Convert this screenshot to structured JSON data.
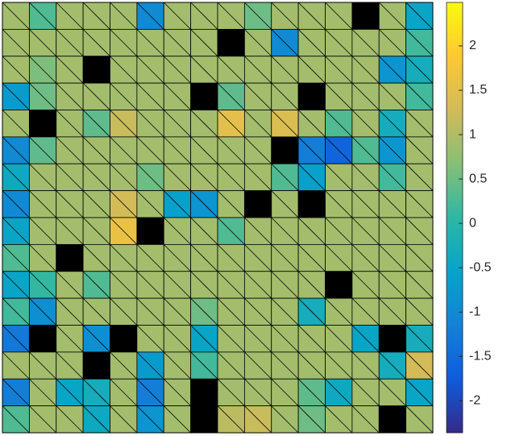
{
  "chart_data": {
    "type": "trimesh",
    "rows": 16,
    "cols": 16,
    "values": [
      [
        0.9,
        0.3,
        0.9,
        0.9,
        0.9,
        -1,
        0.9,
        0.9,
        0.9,
        0.5,
        0.9,
        0.9,
        0.9,
        null,
        0.9,
        -0.5
      ],
      [
        0.9,
        0.9,
        0.9,
        0.9,
        0.9,
        0.9,
        0.9,
        0.9,
        null,
        0.9,
        -1,
        0.9,
        0.9,
        0.9,
        0.9,
        0.2
      ],
      [
        0.9,
        0.6,
        0.9,
        null,
        0.9,
        0.9,
        0.9,
        0.9,
        0.9,
        0.9,
        0.9,
        0.9,
        0.9,
        0.9,
        -0.8,
        -0.3
      ],
      [
        -0.7,
        0.5,
        0.9,
        0.9,
        0.9,
        0.9,
        0.9,
        null,
        0.4,
        0.9,
        0.9,
        null,
        0.9,
        0.9,
        0.9,
        0.2
      ],
      [
        0.9,
        null,
        0.9,
        0.4,
        1.2,
        0.9,
        0.9,
        0.9,
        1.5,
        0.9,
        1.4,
        0.9,
        0.3,
        0.9,
        -0.3,
        0.9
      ],
      [
        -1,
        0.4,
        0.9,
        0.9,
        0.9,
        0.9,
        0.9,
        0.9,
        0.9,
        0.9,
        null,
        -1.2,
        -1.6,
        0.3,
        -0.8,
        0.9
      ],
      [
        -0.4,
        0.9,
        0.9,
        0.9,
        0.9,
        0.5,
        0.9,
        0.9,
        0.9,
        0.9,
        0.3,
        -0.6,
        0.9,
        0.9,
        0.2,
        0.9
      ],
      [
        -1,
        0.9,
        0.9,
        0.9,
        1.3,
        0.9,
        -0.6,
        -0.8,
        0.9,
        null,
        0.9,
        null,
        0.9,
        0.9,
        0.9,
        0.9
      ],
      [
        -0.5,
        0.9,
        0.9,
        0.9,
        1.6,
        null,
        0.9,
        0.9,
        0.3,
        0.9,
        0.9,
        0.9,
        0.9,
        0.9,
        0.9,
        0.9
      ],
      [
        0.3,
        0.9,
        null,
        0.9,
        0.9,
        0.9,
        0.9,
        0.9,
        0.9,
        0.9,
        0.9,
        0.9,
        0.9,
        0.9,
        0.9,
        0.9
      ],
      [
        -0.5,
        0.1,
        0.9,
        0.3,
        0.9,
        0.9,
        0.9,
        0.9,
        0.9,
        0.9,
        0.9,
        0.9,
        null,
        0.9,
        0.9,
        0.9
      ],
      [
        0.2,
        -0.9,
        0.9,
        0.9,
        0.9,
        0.9,
        0.9,
        0.5,
        0.9,
        0.9,
        0.9,
        -0.3,
        0.9,
        0.9,
        0.9,
        0.9
      ],
      [
        -1.3,
        null,
        0.9,
        -0.9,
        null,
        0.9,
        0.9,
        -0.5,
        0.9,
        0.9,
        0.9,
        0.9,
        0.9,
        -0.5,
        null,
        -0.3
      ],
      [
        0.9,
        0.9,
        0.9,
        null,
        0.9,
        -0.7,
        0.9,
        0.2,
        0.9,
        0.9,
        0.9,
        0.9,
        0.9,
        0.9,
        -0.3,
        1.3
      ],
      [
        -1.2,
        0.9,
        -0.5,
        -0.3,
        0.9,
        -1.2,
        0.9,
        null,
        0.9,
        0.9,
        0.9,
        0.4,
        -0.4,
        0.9,
        0.9,
        -0.5
      ],
      [
        0.3,
        0.9,
        0.9,
        -0.4,
        0.9,
        -0.8,
        0.9,
        null,
        1.1,
        1.2,
        0.9,
        0.5,
        0.9,
        0.9,
        null,
        0.9
      ]
    ],
    "clim": [
      -2.36,
      2.49
    ],
    "cticks": [
      -2,
      -1.5,
      -1,
      -0.5,
      0,
      0.5,
      1,
      1.5,
      2
    ],
    "colormap": [
      "#352a87",
      "#0f5cdd",
      "#1481d6",
      "#06a4ca",
      "#2eb7a4",
      "#87bf77",
      "#d1bb59",
      "#fec832",
      "#f9fb0e"
    ],
    "missing_color": "#000000"
  }
}
